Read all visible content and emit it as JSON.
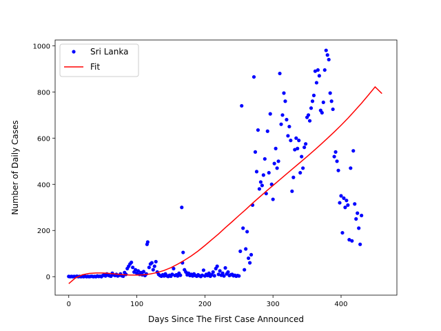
{
  "chart_data": {
    "type": "scatter",
    "xlabel": "Days Since The First Case Announced",
    "ylabel": "Number of Daily Cases",
    "xlim": [
      -20,
      482
    ],
    "ylim": [
      -80,
      1025
    ],
    "xticks": [
      0,
      100,
      200,
      300,
      400
    ],
    "yticks": [
      0,
      200,
      400,
      600,
      800,
      1000
    ],
    "grid": false,
    "legend_position": "top-left",
    "colors": {
      "scatter": "#0000ff",
      "fit": "#ff0000"
    },
    "series": [
      {
        "name": "Sri Lanka",
        "kind": "scatter",
        "points": [
          [
            0,
            1
          ],
          [
            2,
            0
          ],
          [
            4,
            1
          ],
          [
            6,
            0
          ],
          [
            8,
            1
          ],
          [
            10,
            0
          ],
          [
            12,
            2
          ],
          [
            14,
            0
          ],
          [
            16,
            1
          ],
          [
            18,
            0
          ],
          [
            20,
            1
          ],
          [
            22,
            0
          ],
          [
            24,
            2
          ],
          [
            26,
            0
          ],
          [
            28,
            1
          ],
          [
            30,
            0
          ],
          [
            32,
            1
          ],
          [
            34,
            2
          ],
          [
            36,
            0
          ],
          [
            38,
            1
          ],
          [
            40,
            0
          ],
          [
            42,
            3
          ],
          [
            44,
            1
          ],
          [
            46,
            2
          ],
          [
            48,
            0
          ],
          [
            50,
            5
          ],
          [
            52,
            8
          ],
          [
            54,
            3
          ],
          [
            56,
            12
          ],
          [
            58,
            6
          ],
          [
            60,
            4
          ],
          [
            62,
            2
          ],
          [
            64,
            15
          ],
          [
            66,
            8
          ],
          [
            68,
            5
          ],
          [
            70,
            10
          ],
          [
            72,
            3
          ],
          [
            74,
            6
          ],
          [
            76,
            12
          ],
          [
            78,
            4
          ],
          [
            80,
            2
          ],
          [
            82,
            18
          ],
          [
            84,
            10
          ],
          [
            86,
            35
          ],
          [
            88,
            45
          ],
          [
            90,
            55
          ],
          [
            92,
            62
          ],
          [
            94,
            40
          ],
          [
            96,
            20
          ],
          [
            98,
            30
          ],
          [
            100,
            15
          ],
          [
            102,
            25
          ],
          [
            104,
            10
          ],
          [
            106,
            18
          ],
          [
            108,
            8
          ],
          [
            110,
            22
          ],
          [
            112,
            5
          ],
          [
            114,
            12
          ],
          [
            115,
            140
          ],
          [
            116,
            150
          ],
          [
            118,
            40
          ],
          [
            120,
            55
          ],
          [
            122,
            60
          ],
          [
            124,
            30
          ],
          [
            126,
            45
          ],
          [
            128,
            65
          ],
          [
            130,
            20
          ],
          [
            132,
            10
          ],
          [
            134,
            5
          ],
          [
            136,
            2
          ],
          [
            138,
            8
          ],
          [
            140,
            3
          ],
          [
            142,
            12
          ],
          [
            144,
            4
          ],
          [
            146,
            1
          ],
          [
            148,
            6
          ],
          [
            150,
            2
          ],
          [
            152,
            10
          ],
          [
            154,
            35
          ],
          [
            156,
            5
          ],
          [
            158,
            8
          ],
          [
            160,
            3
          ],
          [
            162,
            15
          ],
          [
            164,
            6
          ],
          [
            166,
            300
          ],
          [
            167,
            60
          ],
          [
            168,
            105
          ],
          [
            170,
            30
          ],
          [
            172,
            20
          ],
          [
            174,
            8
          ],
          [
            176,
            15
          ],
          [
            178,
            5
          ],
          [
            180,
            10
          ],
          [
            182,
            3
          ],
          [
            184,
            12
          ],
          [
            186,
            5
          ],
          [
            188,
            2
          ],
          [
            190,
            8
          ],
          [
            192,
            4
          ],
          [
            194,
            1
          ],
          [
            196,
            6
          ],
          [
            198,
            28
          ],
          [
            200,
            3
          ],
          [
            202,
            10
          ],
          [
            204,
            5
          ],
          [
            206,
            15
          ],
          [
            208,
            2
          ],
          [
            210,
            8
          ],
          [
            212,
            20
          ],
          [
            214,
            4
          ],
          [
            216,
            35
          ],
          [
            218,
            45
          ],
          [
            220,
            10
          ],
          [
            222,
            25
          ],
          [
            224,
            6
          ],
          [
            226,
            15
          ],
          [
            228,
            3
          ],
          [
            230,
            38
          ],
          [
            232,
            12
          ],
          [
            234,
            20
          ],
          [
            236,
            5
          ],
          [
            238,
            8
          ],
          [
            240,
            10
          ],
          [
            242,
            4
          ],
          [
            244,
            6
          ],
          [
            246,
            2
          ],
          [
            248,
            5
          ],
          [
            250,
            3
          ],
          [
            252,
            110
          ],
          [
            254,
            740
          ],
          [
            256,
            210
          ],
          [
            258,
            30
          ],
          [
            260,
            120
          ],
          [
            262,
            195
          ],
          [
            264,
            80
          ],
          [
            266,
            60
          ],
          [
            268,
            95
          ],
          [
            270,
            310
          ],
          [
            272,
            865
          ],
          [
            274,
            540
          ],
          [
            276,
            455
          ],
          [
            278,
            635
          ],
          [
            280,
            380
          ],
          [
            282,
            410
          ],
          [
            284,
            395
          ],
          [
            286,
            440
          ],
          [
            288,
            510
          ],
          [
            290,
            360
          ],
          [
            292,
            630
          ],
          [
            294,
            450
          ],
          [
            296,
            705
          ],
          [
            298,
            400
          ],
          [
            300,
            335
          ],
          [
            302,
            490
          ],
          [
            304,
            555
          ],
          [
            306,
            470
          ],
          [
            308,
            500
          ],
          [
            310,
            880
          ],
          [
            312,
            660
          ],
          [
            314,
            700
          ],
          [
            316,
            795
          ],
          [
            318,
            760
          ],
          [
            320,
            680
          ],
          [
            322,
            610
          ],
          [
            324,
            650
          ],
          [
            326,
            590
          ],
          [
            328,
            370
          ],
          [
            330,
            430
          ],
          [
            332,
            550
          ],
          [
            334,
            600
          ],
          [
            336,
            555
          ],
          [
            338,
            590
          ],
          [
            340,
            450
          ],
          [
            342,
            520
          ],
          [
            344,
            470
          ],
          [
            346,
            560
          ],
          [
            348,
            575
          ],
          [
            350,
            690
          ],
          [
            352,
            700
          ],
          [
            354,
            675
          ],
          [
            356,
            730
          ],
          [
            358,
            760
          ],
          [
            360,
            785
          ],
          [
            362,
            890
          ],
          [
            364,
            840
          ],
          [
            366,
            895
          ],
          [
            368,
            870
          ],
          [
            370,
            720
          ],
          [
            372,
            710
          ],
          [
            374,
            755
          ],
          [
            376,
            895
          ],
          [
            378,
            980
          ],
          [
            380,
            960
          ],
          [
            382,
            940
          ],
          [
            384,
            795
          ],
          [
            386,
            760
          ],
          [
            388,
            725
          ],
          [
            390,
            520
          ],
          [
            392,
            540
          ],
          [
            394,
            500
          ],
          [
            396,
            460
          ],
          [
            398,
            320
          ],
          [
            400,
            350
          ],
          [
            402,
            190
          ],
          [
            404,
            340
          ],
          [
            406,
            300
          ],
          [
            408,
            330
          ],
          [
            410,
            310
          ],
          [
            412,
            160
          ],
          [
            414,
            470
          ],
          [
            416,
            155
          ],
          [
            418,
            545
          ],
          [
            420,
            315
          ],
          [
            422,
            250
          ],
          [
            424,
            275
          ],
          [
            426,
            210
          ],
          [
            428,
            140
          ],
          [
            430,
            265
          ]
        ]
      },
      {
        "name": "Fit",
        "kind": "line",
        "points": [
          [
            0,
            -30
          ],
          [
            10,
            -5
          ],
          [
            20,
            8
          ],
          [
            30,
            14
          ],
          [
            40,
            16
          ],
          [
            50,
            16
          ],
          [
            60,
            14
          ],
          [
            70,
            11
          ],
          [
            80,
            9
          ],
          [
            90,
            7
          ],
          [
            100,
            7
          ],
          [
            110,
            8
          ],
          [
            120,
            12
          ],
          [
            130,
            18
          ],
          [
            140,
            27
          ],
          [
            150,
            39
          ],
          [
            160,
            54
          ],
          [
            170,
            71
          ],
          [
            180,
            90
          ],
          [
            190,
            111
          ],
          [
            200,
            135
          ],
          [
            210,
            160
          ],
          [
            220,
            185
          ],
          [
            230,
            212
          ],
          [
            240,
            238
          ],
          [
            250,
            265
          ],
          [
            260,
            291
          ],
          [
            270,
            318
          ],
          [
            280,
            344
          ],
          [
            290,
            370
          ],
          [
            300,
            395
          ],
          [
            310,
            420
          ],
          [
            320,
            445
          ],
          [
            330,
            470
          ],
          [
            340,
            495
          ],
          [
            350,
            520
          ],
          [
            360,
            546
          ],
          [
            370,
            572
          ],
          [
            380,
            599
          ],
          [
            390,
            627
          ],
          [
            400,
            656
          ],
          [
            410,
            686
          ],
          [
            420,
            718
          ],
          [
            430,
            751
          ],
          [
            440,
            786
          ],
          [
            450,
            822
          ],
          [
            460,
            793
          ]
        ]
      }
    ]
  }
}
